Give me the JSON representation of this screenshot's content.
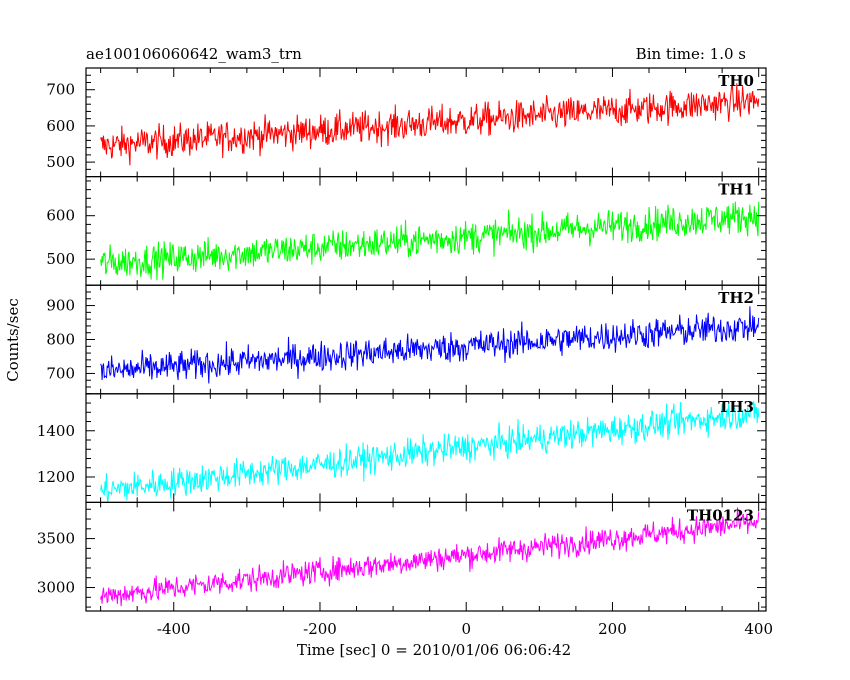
{
  "chart_data": {
    "type": "line",
    "title": "ae100106060642_wam3_trn",
    "bin_time": "Bin time: 1.0 s",
    "xlabel": "Time [sec] 0 = 2010/01/06 06:06:42",
    "ylabel": "Counts/sec",
    "xlim": [
      -520,
      410
    ],
    "x_ticks": [
      -400,
      -200,
      0,
      200,
      400
    ],
    "x_range": [
      -500,
      400
    ],
    "grid": false,
    "panels": [
      {
        "name": "TH0",
        "color": "#ff0000",
        "ylim": [
          460,
          760
        ],
        "y_ticks": [
          500,
          600,
          700
        ],
        "trend_start": 545,
        "trend_end": 670,
        "noise": 32
      },
      {
        "name": "TH1",
        "color": "#00ff00",
        "ylim": [
          440,
          690
        ],
        "y_ticks": [
          500,
          600
        ],
        "trend_start": 490,
        "trend_end": 600,
        "noise": 27
      },
      {
        "name": "TH2",
        "color": "#0000ff",
        "ylim": [
          640,
          960
        ],
        "y_ticks": [
          700,
          800,
          900
        ],
        "trend_start": 705,
        "trend_end": 840,
        "noise": 32
      },
      {
        "name": "TH3",
        "color": "#00ffff",
        "ylim": [
          1090,
          1560
        ],
        "y_ticks": [
          1200,
          1400
        ],
        "trend_start": 1140,
        "trend_end": 1480,
        "noise": 45
      },
      {
        "name": "TH0123",
        "color": "#ff00ff",
        "ylim": [
          2760,
          3870
        ],
        "y_ticks": [
          3000,
          3500
        ],
        "trend_start": 2910,
        "trend_end": 3670,
        "noise": 90
      }
    ]
  }
}
